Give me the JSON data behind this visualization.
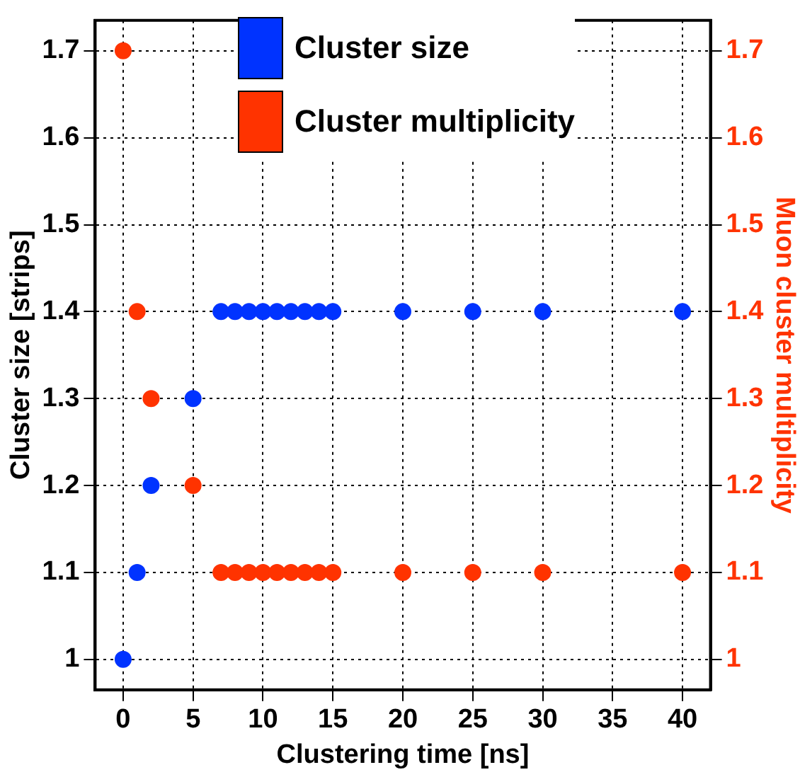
{
  "chart_data": {
    "type": "scatter",
    "xlabel": "Clustering time [ns]",
    "ylabel": "Cluster size [strips]",
    "y2label": "Muon cluster multiplicity",
    "xlim": [
      -2,
      42
    ],
    "xticks": [
      0,
      5,
      10,
      15,
      20,
      25,
      30,
      35,
      40
    ],
    "ylim": [
      0.965,
      1.735
    ],
    "yticks": [
      1,
      1.1,
      1.2,
      1.3,
      1.4,
      1.5,
      1.6,
      1.7
    ],
    "y2lim": [
      0.965,
      1.735
    ],
    "y2ticks": [
      1,
      1.1,
      1.2,
      1.3,
      1.4,
      1.5,
      1.6,
      1.7
    ],
    "grid": true,
    "legend": "top",
    "marker": "circle",
    "x": [
      0,
      1,
      2,
      5,
      7,
      8,
      9,
      10,
      11,
      12,
      13,
      14,
      15,
      20,
      25,
      30,
      40
    ],
    "series": [
      {
        "name": "Cluster size",
        "color": "#0033ff",
        "values": [
          1.0,
          1.1,
          1.2,
          1.3,
          1.4,
          1.4,
          1.4,
          1.4,
          1.4,
          1.4,
          1.4,
          1.4,
          1.4,
          1.4,
          1.4,
          1.4,
          1.4
        ]
      },
      {
        "name": "Cluster multiplicity",
        "color": "#ff3300",
        "axis": "y2",
        "values": [
          1.7,
          1.4,
          1.3,
          1.2,
          1.1,
          1.1,
          1.1,
          1.1,
          1.1,
          1.1,
          1.1,
          1.1,
          1.1,
          1.1,
          1.1,
          1.1,
          1.1
        ]
      }
    ]
  }
}
